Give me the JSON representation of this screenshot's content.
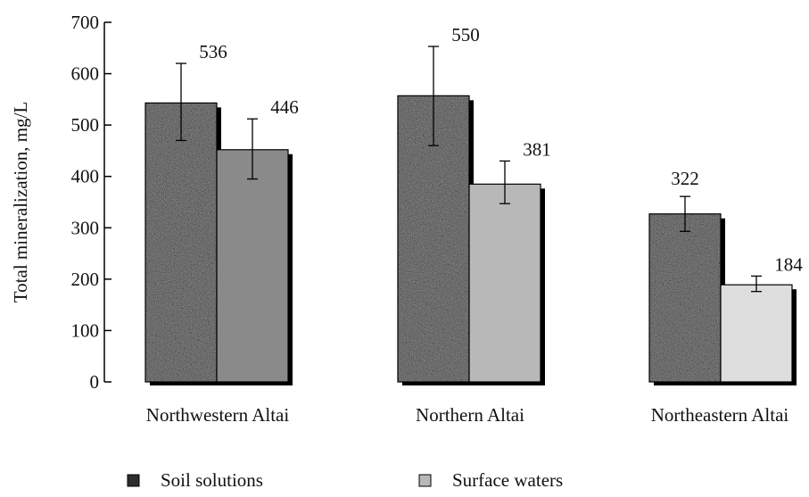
{
  "chart_data": {
    "type": "bar",
    "ylabel": "Total mineralization, mg/L",
    "ylim": [
      0,
      700
    ],
    "yticks": [
      0,
      100,
      200,
      300,
      400,
      500,
      600,
      700
    ],
    "categories": [
      "Northwestern Altai",
      "Northern Altai",
      "Northeastern Altai"
    ],
    "series": [
      {
        "name": "Soil solutions",
        "values": [
          536,
          550,
          322
        ],
        "bar_tops": [
          543,
          557,
          327
        ],
        "error_low": [
          470,
          460,
          293
        ],
        "error_high": [
          620,
          653,
          361
        ],
        "data_labels": [
          "536",
          "550",
          "322"
        ],
        "color": "#2e2e2e"
      },
      {
        "name": "Surface waters",
        "values": [
          446,
          381,
          184
        ],
        "bar_tops": [
          452,
          385,
          189
        ],
        "error_low": [
          395,
          347,
          176
        ],
        "error_high": [
          512,
          430,
          206
        ],
        "data_labels": [
          "446",
          "381",
          "184"
        ],
        "colors": [
          "#8a8a8a",
          "#b8b8b8",
          "#dedede"
        ]
      }
    ],
    "legend_position": "bottom",
    "grid": false
  }
}
